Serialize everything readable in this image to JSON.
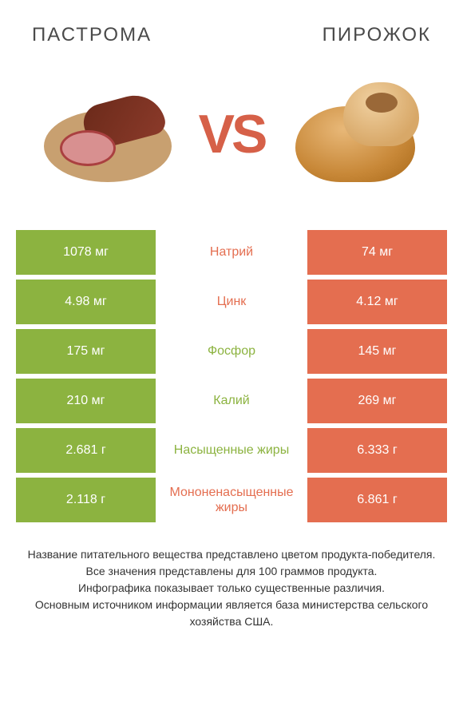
{
  "product_left": {
    "title": "ПАСТРОМА"
  },
  "product_right": {
    "title": "ПИРОЖОК"
  },
  "vs_text": "VS",
  "colors": {
    "left": "#8cb340",
    "right": "#e46e50",
    "vs": "#d66048"
  },
  "table": {
    "rows": [
      {
        "left": "1078 мг",
        "mid": "Натрий",
        "right": "74 мг",
        "winner": "right"
      },
      {
        "left": "4.98 мг",
        "mid": "Цинк",
        "right": "4.12 мг",
        "winner": "right"
      },
      {
        "left": "175 мг",
        "mid": "Фосфор",
        "right": "145 мг",
        "winner": "left"
      },
      {
        "left": "210 мг",
        "mid": "Калий",
        "right": "269 мг",
        "winner": "left"
      },
      {
        "left": "2.681 г",
        "mid": "Насыщенные жиры",
        "right": "6.333 г",
        "winner": "left"
      },
      {
        "left": "2.118 г",
        "mid": "Мононенасыщенные жиры",
        "right": "6.861 г",
        "winner": "right"
      }
    ]
  },
  "footer": {
    "line1": "Название питательного вещества представлено цветом продукта-победителя.",
    "line2": "Все значения представлены для 100 граммов продукта.",
    "line3": "Инфографика показывает только существенные различия.",
    "line4": "Основным источником информации является база министерства сельского хозяйства США."
  }
}
